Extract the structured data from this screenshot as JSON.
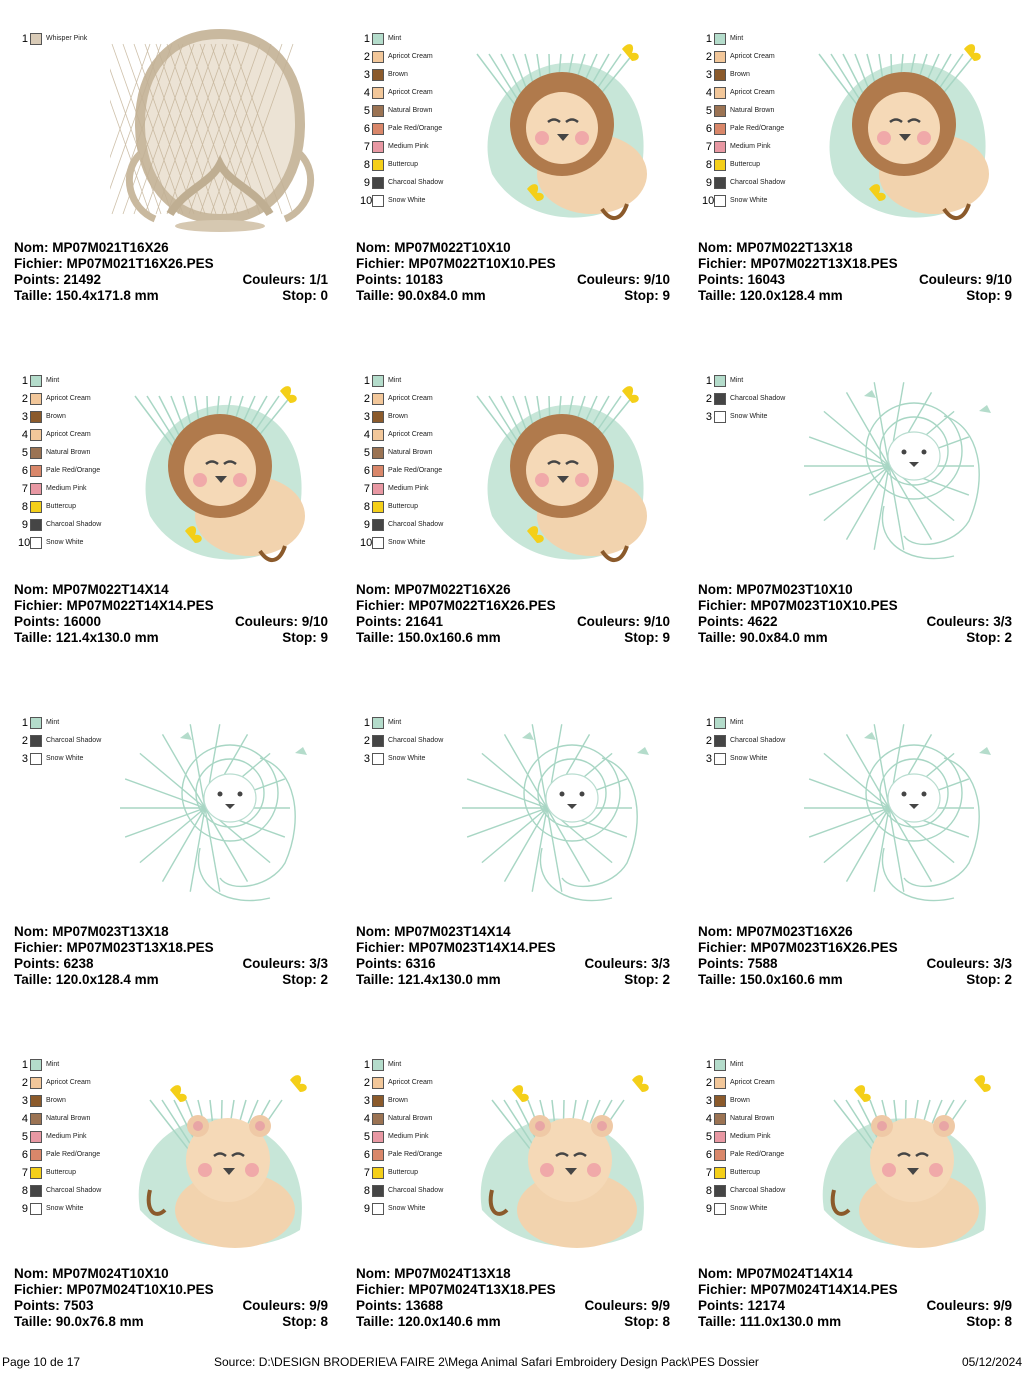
{
  "labels": {
    "nom": "Nom:",
    "fichier": "Fichier:",
    "points": "Points:",
    "couleurs": "Couleurs:",
    "taille": "Taille:",
    "stop": "Stop:"
  },
  "designs": [
    {
      "nom": "MP07M021T16X26",
      "fichier": "MP07M021T16X26.PES",
      "points": "21492",
      "couleurs": "1/1",
      "taille": "150.4x171.8 mm",
      "stop": "0",
      "art": "frame",
      "palette": [
        {
          "num": "1",
          "name": "Whisper Pink",
          "color": "#d9cbb7"
        }
      ]
    },
    {
      "nom": "MP07M022T10X10",
      "fichier": "MP07M022T10X10.PES",
      "points": "10183",
      "couleurs": "9/10",
      "taille": "90.0x84.0 mm",
      "stop": "9",
      "art": "lion",
      "palette": [
        {
          "num": "1",
          "name": "Mint",
          "color": "#b4dccb"
        },
        {
          "num": "2",
          "name": "Apricot Cream",
          "color": "#f2c79a"
        },
        {
          "num": "3",
          "name": "Brown",
          "color": "#8b5a2b"
        },
        {
          "num": "4",
          "name": "Apricot Cream",
          "color": "#f2c79a"
        },
        {
          "num": "5",
          "name": "Natural Brown",
          "color": "#9b7353"
        },
        {
          "num": "6",
          "name": "Pale Red/Orange",
          "color": "#d9876a"
        },
        {
          "num": "7",
          "name": "Medium Pink",
          "color": "#e898a3"
        },
        {
          "num": "8",
          "name": "Buttercup",
          "color": "#f4cf19"
        },
        {
          "num": "9",
          "name": "Charcoal Shadow",
          "color": "#454545"
        },
        {
          "num": "10",
          "name": "Snow White",
          "color": "#ffffff"
        }
      ]
    },
    {
      "nom": "MP07M022T13X18",
      "fichier": "MP07M022T13X18.PES",
      "points": "16043",
      "couleurs": "9/10",
      "taille": "120.0x128.4 mm",
      "stop": "9",
      "art": "lion",
      "palette": [
        {
          "num": "1",
          "name": "Mint",
          "color": "#b4dccb"
        },
        {
          "num": "2",
          "name": "Apricot Cream",
          "color": "#f2c79a"
        },
        {
          "num": "3",
          "name": "Brown",
          "color": "#8b5a2b"
        },
        {
          "num": "4",
          "name": "Apricot Cream",
          "color": "#f2c79a"
        },
        {
          "num": "5",
          "name": "Natural Brown",
          "color": "#9b7353"
        },
        {
          "num": "6",
          "name": "Pale Red/Orange",
          "color": "#d9876a"
        },
        {
          "num": "7",
          "name": "Medium Pink",
          "color": "#e898a3"
        },
        {
          "num": "8",
          "name": "Buttercup",
          "color": "#f4cf19"
        },
        {
          "num": "9",
          "name": "Charcoal Shadow",
          "color": "#454545"
        },
        {
          "num": "10",
          "name": "Snow White",
          "color": "#ffffff"
        }
      ]
    },
    {
      "nom": "MP07M022T14X14",
      "fichier": "MP07M022T14X14.PES",
      "points": "16000",
      "couleurs": "9/10",
      "taille": "121.4x130.0 mm",
      "stop": "9",
      "art": "lion",
      "palette": [
        {
          "num": "1",
          "name": "Mint",
          "color": "#b4dccb"
        },
        {
          "num": "2",
          "name": "Apricot Cream",
          "color": "#f2c79a"
        },
        {
          "num": "3",
          "name": "Brown",
          "color": "#8b5a2b"
        },
        {
          "num": "4",
          "name": "Apricot Cream",
          "color": "#f2c79a"
        },
        {
          "num": "5",
          "name": "Natural Brown",
          "color": "#9b7353"
        },
        {
          "num": "6",
          "name": "Pale Red/Orange",
          "color": "#d9876a"
        },
        {
          "num": "7",
          "name": "Medium Pink",
          "color": "#e898a3"
        },
        {
          "num": "8",
          "name": "Buttercup",
          "color": "#f4cf19"
        },
        {
          "num": "9",
          "name": "Charcoal Shadow",
          "color": "#454545"
        },
        {
          "num": "10",
          "name": "Snow White",
          "color": "#ffffff"
        }
      ]
    },
    {
      "nom": "MP07M022T16X26",
      "fichier": "MP07M022T16X26.PES",
      "points": "21641",
      "couleurs": "9/10",
      "taille": "150.0x160.6 mm",
      "stop": "9",
      "art": "lion",
      "palette": [
        {
          "num": "1",
          "name": "Mint",
          "color": "#b4dccb"
        },
        {
          "num": "2",
          "name": "Apricot Cream",
          "color": "#f2c79a"
        },
        {
          "num": "3",
          "name": "Brown",
          "color": "#8b5a2b"
        },
        {
          "num": "4",
          "name": "Apricot Cream",
          "color": "#f2c79a"
        },
        {
          "num": "5",
          "name": "Natural Brown",
          "color": "#9b7353"
        },
        {
          "num": "6",
          "name": "Pale Red/Orange",
          "color": "#d9876a"
        },
        {
          "num": "7",
          "name": "Medium Pink",
          "color": "#e898a3"
        },
        {
          "num": "8",
          "name": "Buttercup",
          "color": "#f4cf19"
        },
        {
          "num": "9",
          "name": "Charcoal Shadow",
          "color": "#454545"
        },
        {
          "num": "10",
          "name": "Snow White",
          "color": "#ffffff"
        }
      ]
    },
    {
      "nom": "MP07M023T10X10",
      "fichier": "MP07M023T10X10.PES",
      "points": "4622",
      "couleurs": "3/3",
      "taille": "90.0x84.0 mm",
      "stop": "2",
      "art": "outline",
      "palette": [
        {
          "num": "1",
          "name": "Mint",
          "color": "#b4dccb"
        },
        {
          "num": "2",
          "name": "Charcoal Shadow",
          "color": "#454545"
        },
        {
          "num": "3",
          "name": "Snow White",
          "color": "#ffffff"
        }
      ]
    },
    {
      "nom": "MP07M023T13X18",
      "fichier": "MP07M023T13X18.PES",
      "points": "6238",
      "couleurs": "3/3",
      "taille": "120.0x128.4 mm",
      "stop": "2",
      "art": "outline",
      "palette": [
        {
          "num": "1",
          "name": "Mint",
          "color": "#b4dccb"
        },
        {
          "num": "2",
          "name": "Charcoal Shadow",
          "color": "#454545"
        },
        {
          "num": "3",
          "name": "Snow White",
          "color": "#ffffff"
        }
      ]
    },
    {
      "nom": "MP07M023T14X14",
      "fichier": "MP07M023T14X14.PES",
      "points": "6316",
      "couleurs": "3/3",
      "taille": "121.4x130.0 mm",
      "stop": "2",
      "art": "outline",
      "palette": [
        {
          "num": "1",
          "name": "Mint",
          "color": "#b4dccb"
        },
        {
          "num": "2",
          "name": "Charcoal Shadow",
          "color": "#454545"
        },
        {
          "num": "3",
          "name": "Snow White",
          "color": "#ffffff"
        }
      ]
    },
    {
      "nom": "MP07M023T16X26",
      "fichier": "MP07M023T16X26.PES",
      "points": "7588",
      "couleurs": "3/3",
      "taille": "150.0x160.6 mm",
      "stop": "2",
      "art": "outline",
      "palette": [
        {
          "num": "1",
          "name": "Mint",
          "color": "#b4dccb"
        },
        {
          "num": "2",
          "name": "Charcoal Shadow",
          "color": "#454545"
        },
        {
          "num": "3",
          "name": "Snow White",
          "color": "#ffffff"
        }
      ]
    },
    {
      "nom": "MP07M024T10X10",
      "fichier": "MP07M024T10X10.PES",
      "points": "7503",
      "couleurs": "9/9",
      "taille": "90.0x76.8 mm",
      "stop": "8",
      "art": "lioness",
      "palette": [
        {
          "num": "1",
          "name": "Mint",
          "color": "#b4dccb"
        },
        {
          "num": "2",
          "name": "Apricot Cream",
          "color": "#f2c79a"
        },
        {
          "num": "3",
          "name": "Brown",
          "color": "#8b5a2b"
        },
        {
          "num": "4",
          "name": "Natural Brown",
          "color": "#9b7353"
        },
        {
          "num": "5",
          "name": "Medium Pink",
          "color": "#e898a3"
        },
        {
          "num": "6",
          "name": "Pale Red/Orange",
          "color": "#d9876a"
        },
        {
          "num": "7",
          "name": "Buttercup",
          "color": "#f4cf19"
        },
        {
          "num": "8",
          "name": "Charcoal Shadow",
          "color": "#454545"
        },
        {
          "num": "9",
          "name": "Snow White",
          "color": "#ffffff"
        }
      ]
    },
    {
      "nom": "MP07M024T13X18",
      "fichier": "MP07M024T13X18.PES",
      "points": "13688",
      "couleurs": "9/9",
      "taille": "120.0x140.6 mm",
      "stop": "8",
      "art": "lioness",
      "palette": [
        {
          "num": "1",
          "name": "Mint",
          "color": "#b4dccb"
        },
        {
          "num": "2",
          "name": "Apricot Cream",
          "color": "#f2c79a"
        },
        {
          "num": "3",
          "name": "Brown",
          "color": "#8b5a2b"
        },
        {
          "num": "4",
          "name": "Natural Brown",
          "color": "#9b7353"
        },
        {
          "num": "5",
          "name": "Medium Pink",
          "color": "#e898a3"
        },
        {
          "num": "6",
          "name": "Pale Red/Orange",
          "color": "#d9876a"
        },
        {
          "num": "7",
          "name": "Buttercup",
          "color": "#f4cf19"
        },
        {
          "num": "8",
          "name": "Charcoal Shadow",
          "color": "#454545"
        },
        {
          "num": "9",
          "name": "Snow White",
          "color": "#ffffff"
        }
      ]
    },
    {
      "nom": "MP07M024T14X14",
      "fichier": "MP07M024T14X14.PES",
      "points": "12174",
      "couleurs": "9/9",
      "taille": "111.0x130.0 mm",
      "stop": "8",
      "art": "lioness",
      "palette": [
        {
          "num": "1",
          "name": "Mint",
          "color": "#b4dccb"
        },
        {
          "num": "2",
          "name": "Apricot Cream",
          "color": "#f2c79a"
        },
        {
          "num": "3",
          "name": "Brown",
          "color": "#8b5a2b"
        },
        {
          "num": "4",
          "name": "Natural Brown",
          "color": "#9b7353"
        },
        {
          "num": "5",
          "name": "Medium Pink",
          "color": "#e898a3"
        },
        {
          "num": "6",
          "name": "Pale Red/Orange",
          "color": "#d9876a"
        },
        {
          "num": "7",
          "name": "Buttercup",
          "color": "#f4cf19"
        },
        {
          "num": "8",
          "name": "Charcoal Shadow",
          "color": "#454545"
        },
        {
          "num": "9",
          "name": "Snow White",
          "color": "#ffffff"
        }
      ]
    }
  ],
  "footer": {
    "page": "Page 10 de 17",
    "source": "Source: D:\\DESIGN BRODERIE\\A FAIRE 2\\Mega Animal Safari Embroidery Design Pack\\PES Dossier",
    "date": "05/12/2024"
  }
}
